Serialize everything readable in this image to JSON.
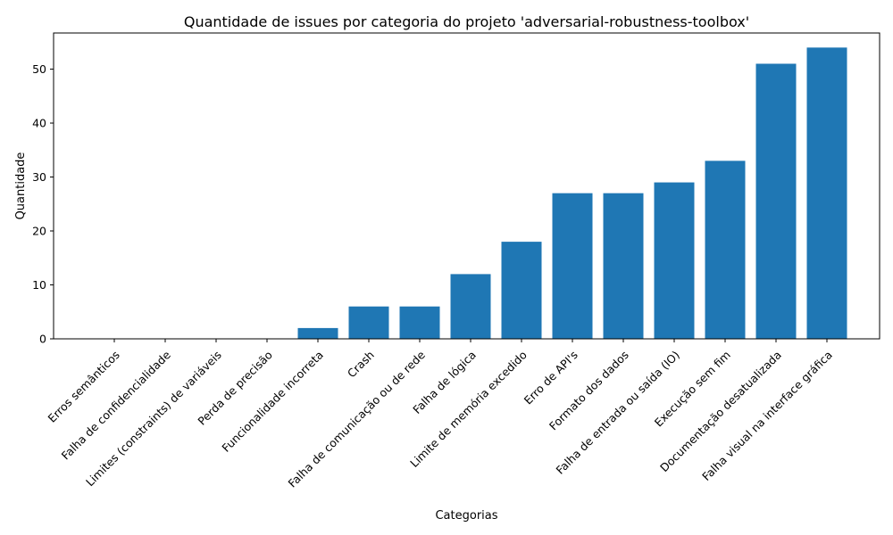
{
  "chart_data": {
    "type": "bar",
    "title": "Quantidade de issues por categoria do projeto 'adversarial-robustness-toolbox'",
    "xlabel": "Categorias",
    "ylabel": "Quantidade",
    "categories": [
      "Erros semânticos",
      "Falha de confidencialidade",
      "Limites (constraints) de variáveis",
      "Perda de precisão",
      "Funcionalidade incorreta",
      "Crash",
      "Falha de comunicação ou de rede",
      "Falha de lógica",
      "Limite de memória excedido",
      "Erro de API's",
      "Formato dos dados",
      "Falha de entrada ou saída (IO)",
      "Execução sem fim",
      "Documentação desatualizada",
      "Falha visual na interface gráfica"
    ],
    "values": [
      0,
      0,
      0,
      0,
      2,
      6,
      6,
      12,
      18,
      27,
      27,
      29,
      33,
      51,
      54
    ],
    "ylim": [
      0,
      56.7
    ],
    "yticks": [
      0,
      10,
      20,
      30,
      40,
      50
    ],
    "bar_color": "#1f77b4",
    "grid": false,
    "legend": "none"
  }
}
